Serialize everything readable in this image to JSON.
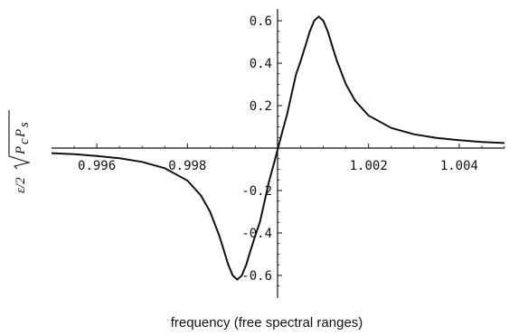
{
  "chart_data": {
    "type": "line",
    "title": "",
    "xlabel": "frequency (free spectral ranges)",
    "ylabel": "ε/2√(P_c P_s)",
    "xlim": [
      0.995,
      1.005
    ],
    "ylim": [
      -0.66,
      0.66
    ],
    "grid": false,
    "x_ticks": [
      0.996,
      0.998,
      1.002,
      1.004
    ],
    "x_tick_labels": [
      "0.996",
      "0.998",
      "1.002",
      "1.004"
    ],
    "y_ticks": [
      0.6,
      0.4,
      0.2,
      -0.2,
      -0.4,
      -0.6
    ],
    "y_tick_labels": [
      "0.6",
      "0.4",
      "0.2",
      "-0.2",
      "-0.4",
      "-0.6"
    ],
    "series": [
      {
        "x": [
          0.995,
          0.9955,
          0.996,
          0.9965,
          0.997,
          0.9975,
          0.998,
          0.9983,
          0.9985,
          0.9987,
          0.9988,
          0.9989,
          0.999,
          0.9991,
          0.9992,
          0.9993,
          0.9994,
          0.9995,
          0.9996,
          0.9997,
          0.9998,
          0.9999,
          1.0,
          1.0001,
          1.0002,
          1.0003,
          1.0004,
          1.0005,
          1.0006,
          1.0007,
          1.0008,
          1.0009,
          1.001,
          1.0011,
          1.0012,
          1.0013,
          1.0015,
          1.0017,
          1.002,
          1.0025,
          1.003,
          1.0035,
          1.004,
          1.0045,
          1.005
        ],
        "y": [
          -0.024,
          -0.029,
          -0.037,
          -0.048,
          -0.065,
          -0.095,
          -0.153,
          -0.224,
          -0.3,
          -0.411,
          -0.479,
          -0.549,
          -0.6,
          -0.62,
          -0.601,
          -0.549,
          -0.479,
          -0.411,
          -0.348,
          -0.254,
          -0.158,
          -0.081,
          0.0,
          0.081,
          0.158,
          0.254,
          0.348,
          0.411,
          0.479,
          0.549,
          0.601,
          0.62,
          0.6,
          0.549,
          0.479,
          0.411,
          0.3,
          0.224,
          0.153,
          0.095,
          0.065,
          0.048,
          0.037,
          0.029,
          0.024
        ]
      }
    ]
  }
}
